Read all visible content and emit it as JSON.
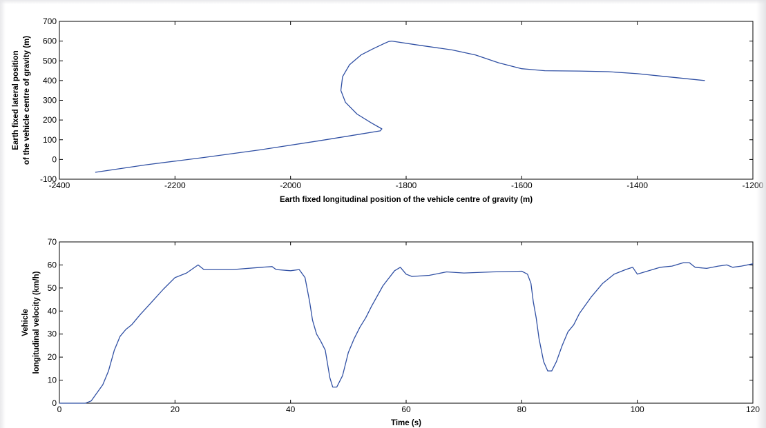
{
  "chart_data": [
    {
      "type": "line",
      "title": "",
      "xlabel": "Earth fixed longitudinal position of the vehicle centre of gravity (m)",
      "ylabel_lines": [
        "Earth fixed lateral position",
        "of the vehicle centre of gravity (m)"
      ],
      "xlim": [
        -2400,
        -1200
      ],
      "ylim": [
        -100,
        700
      ],
      "xticks": [
        -2400,
        -2200,
        -2000,
        -1800,
        -1600,
        -1400,
        -1200
      ],
      "yticks": [
        -100,
        0,
        100,
        200,
        300,
        400,
        500,
        600,
        700
      ],
      "grid": false,
      "line_color": "#2f4fa3",
      "series": [
        {
          "x": [
            -2338,
            -2250,
            -2150,
            -2050,
            -1950,
            -1880,
            -1845,
            -1842,
            -1860,
            -1885,
            -1905,
            -1913,
            -1910,
            -1898,
            -1878,
            -1858,
            -1840,
            -1830,
            -1825,
            -1780,
            -1720,
            -1680,
            -1640,
            -1600,
            -1560,
            -1500,
            -1450,
            -1400,
            -1350,
            -1283
          ],
          "y": [
            -65,
            -27,
            10,
            50,
            95,
            128,
            145,
            155,
            185,
            230,
            290,
            350,
            420,
            480,
            530,
            560,
            585,
            598,
            600,
            580,
            555,
            530,
            490,
            460,
            450,
            448,
            445,
            435,
            420,
            400
          ]
        }
      ]
    },
    {
      "type": "line",
      "title": "",
      "xlabel": "Time (s)",
      "ylabel_lines": [
        "Vehicle",
        "longitudinal velocity (km/h)"
      ],
      "xlim": [
        0,
        120
      ],
      "ylim": [
        0,
        70
      ],
      "xticks": [
        0,
        20,
        40,
        60,
        80,
        100,
        120
      ],
      "yticks": [
        0,
        10,
        20,
        30,
        40,
        50,
        60,
        70
      ],
      "grid": false,
      "line_color": "#2f4fa3",
      "series": [
        {
          "x": [
            0,
            4.5,
            5.5,
            6.5,
            7.5,
            8.5,
            9.5,
            10.5,
            11.5,
            12.5,
            14,
            16,
            18,
            20,
            22,
            24,
            25,
            30,
            35,
            36.8,
            37.5,
            40,
            41.5,
            42.5,
            43.3,
            43.8,
            44.5,
            45.2,
            46,
            46.8,
            47.3,
            48,
            49,
            50,
            51,
            52,
            53,
            54,
            56,
            58,
            59,
            60,
            61,
            64,
            67,
            70,
            75,
            80,
            81,
            81.6,
            82,
            82.5,
            83,
            83.8,
            84.5,
            85.2,
            86,
            87,
            88,
            89,
            90,
            92,
            94,
            96,
            98,
            99.2,
            100,
            102,
            104,
            106,
            108,
            109,
            110,
            112,
            114,
            115.5,
            116.5,
            118,
            120
          ],
          "y": [
            0,
            0,
            1,
            4.5,
            8,
            14,
            23,
            29,
            32,
            34,
            38.5,
            44,
            49.5,
            54.5,
            56.5,
            60,
            58,
            58,
            59,
            59.3,
            58,
            57.5,
            58,
            54.5,
            44,
            36,
            30,
            27,
            23,
            11,
            7,
            7,
            12,
            22,
            28,
            33,
            37,
            42,
            51,
            57.5,
            59,
            56,
            55,
            55.5,
            57,
            56.5,
            57,
            57.3,
            56,
            52,
            44,
            37,
            28,
            18,
            14,
            14,
            18,
            25,
            31,
            34,
            39,
            46,
            52,
            56,
            58,
            59,
            56,
            57.5,
            59,
            59.5,
            61,
            61,
            59,
            58.5,
            59.5,
            60,
            59,
            59.5,
            60.5
          ]
        }
      ]
    }
  ]
}
